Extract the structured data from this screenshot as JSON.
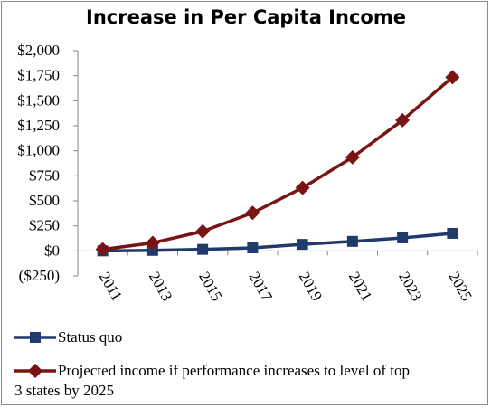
{
  "chart_data": {
    "type": "line",
    "title": "Increase in Per Capita Income",
    "categories": [
      "2011",
      "2013",
      "2015",
      "2017",
      "2019",
      "2021",
      "2023",
      "2025"
    ],
    "ylim": [
      -250,
      2000
    ],
    "y_ticks": [
      "$2,000",
      "$1,750",
      "$1,500",
      "$1,250",
      "$1,000",
      "$750",
      "$500",
      "$250",
      "$0",
      "($250)"
    ],
    "y_tick_values": [
      2000,
      1750,
      1500,
      1250,
      1000,
      750,
      500,
      250,
      0,
      -250
    ],
    "grid": false,
    "legend_position": "bottom",
    "series": [
      {
        "name": "Status quo",
        "values": [
          0,
          5,
          15,
          30,
          65,
          95,
          130,
          175
        ],
        "color": "#1F3A6B",
        "marker": "square"
      },
      {
        "name": "Projected income if performance increases to level of top 3 states by 2025",
        "legend_lines": [
          "Projected income if performance increases to level of top",
          "3 states by 2025"
        ],
        "values": [
          15,
          80,
          195,
          380,
          630,
          935,
          1305,
          1735
        ],
        "color": "#7A1414",
        "marker": "diamond"
      }
    ]
  }
}
